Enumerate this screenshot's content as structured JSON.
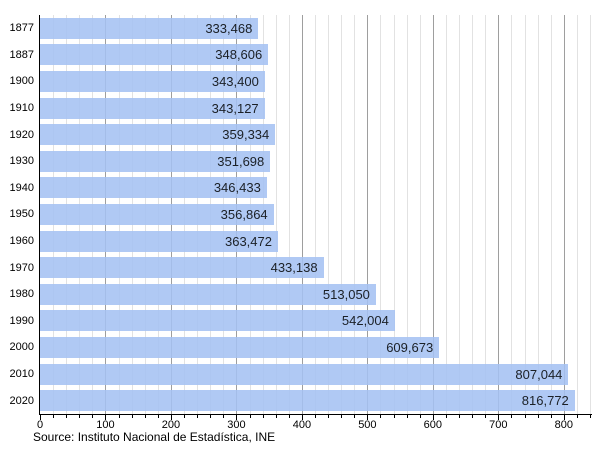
{
  "chart_data": {
    "type": "bar",
    "orientation": "horizontal",
    "title": "",
    "xlabel": "",
    "ylabel": "",
    "categories": [
      "1877",
      "1887",
      "1900",
      "1910",
      "1920",
      "1930",
      "1940",
      "1950",
      "1960",
      "1970",
      "1980",
      "1990",
      "2000",
      "2010",
      "2020"
    ],
    "values": [
      333468,
      348606,
      343400,
      343127,
      359334,
      351698,
      346433,
      356864,
      363472,
      433138,
      513050,
      542004,
      609673,
      807044,
      816772
    ],
    "value_labels": [
      "333,468",
      "348,606",
      "343,400",
      "343,127",
      "359,334",
      "351,698",
      "346,433",
      "356,864",
      "363,472",
      "433,138",
      "513,050",
      "542,004",
      "609,673",
      "807,044",
      "816,772"
    ],
    "axis_unit": "thousands",
    "xlim": [
      0,
      840
    ],
    "x_major_tick_step": 100,
    "x_minor_tick_step": 20,
    "x_tick_labels": [
      "0",
      "100",
      "200",
      "300",
      "400",
      "500",
      "600",
      "700",
      "800"
    ],
    "grid": true,
    "legend": "none",
    "source": "Source: Instituto Nacional de Estadística, INE",
    "colors": {
      "bar_fill": "#a5c1f3",
      "bar_fill_rgba": "rgba(165,193,243,0.88)",
      "major_gridline": "#9e9e9e",
      "minor_gridline": "#e2e2e2",
      "axis": "#000000",
      "value_label_text": "#1b2026",
      "tick_label_text": "#000000",
      "background": "#ffffff"
    }
  }
}
